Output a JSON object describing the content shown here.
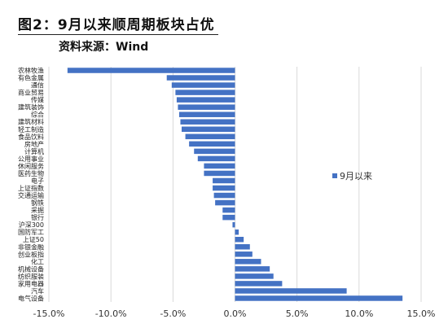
{
  "header": {
    "title": "图2：9月以来顺周期板块占优",
    "source": "资料来源：Wind"
  },
  "chart_data": {
    "type": "bar",
    "orientation": "horizontal",
    "categories": [
      "农林牧渔",
      "有色金属",
      "通信",
      "商业贸易",
      "传媒",
      "建筑装饰",
      "综合",
      "建筑材料",
      "轻工制造",
      "食品饮料",
      "房地产",
      "计算机",
      "公用事业",
      "休闲服务",
      "医药生物",
      "电子",
      "上证指数",
      "交通运输",
      "钢铁",
      "采掘",
      "银行",
      "沪深300",
      "国防军工",
      "上证50",
      "非银金融",
      "创业板指",
      "化工",
      "机械设备",
      "纺织服装",
      "家用电器",
      "汽车",
      "电气设备"
    ],
    "series": [
      {
        "name": "9月以来",
        "color": "#4472c4",
        "values": [
          -13.5,
          -5.5,
          -5.1,
          -4.8,
          -4.7,
          -4.6,
          -4.5,
          -4.4,
          -4.3,
          -4.0,
          -3.7,
          -3.3,
          -3.0,
          -2.5,
          -2.5,
          -1.8,
          -1.8,
          -1.7,
          -1.6,
          -1.0,
          -1.0,
          -0.2,
          0.3,
          0.7,
          1.2,
          1.4,
          2.1,
          2.8,
          3.1,
          3.8,
          9.0,
          13.5
        ]
      }
    ],
    "xlim": [
      -15,
      15
    ],
    "xticks": [
      -15,
      -10,
      -5,
      0,
      5,
      10,
      15
    ],
    "xtick_labels": [
      "-15.0%",
      "-10.0%",
      "-5.0%",
      "0.0%",
      "5.0%",
      "10.0%",
      "15.0%"
    ],
    "grid": true,
    "legend": {
      "position": "right",
      "entries": [
        "9月以来"
      ]
    }
  }
}
